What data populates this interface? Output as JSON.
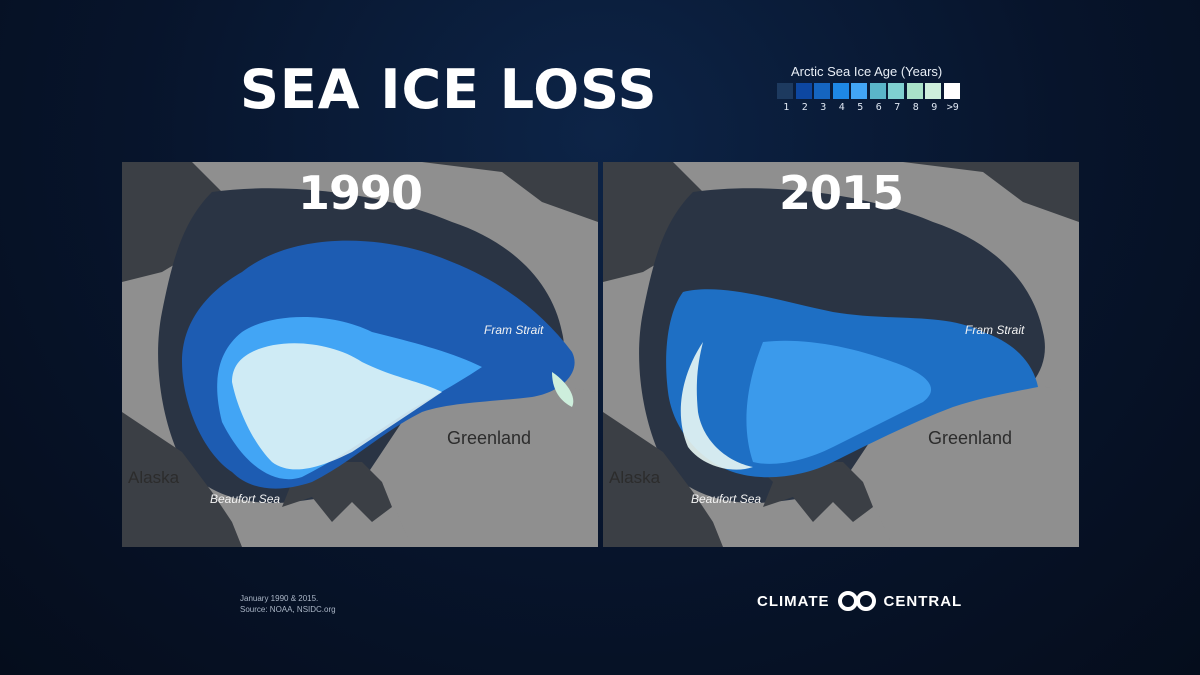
{
  "title": "SEA ICE LOSS",
  "legend": {
    "title": "Arctic Sea Ice Age (Years)",
    "labels": [
      "1",
      "2",
      "3",
      "4",
      "5",
      "6",
      "7",
      "8",
      "9",
      ">9"
    ],
    "colors": [
      "#1d3a5f",
      "#0d47a1",
      "#1565c0",
      "#1e88e5",
      "#42a5f5",
      "#5ab5c9",
      "#7fd0d0",
      "#a9e2c9",
      "#cdeedc",
      "#ffffff"
    ]
  },
  "maps": [
    {
      "year": "1990",
      "labels": {
        "fram": "Fram Strait",
        "greenland": "Greenland",
        "alaska": "Alaska",
        "beaufort": "Beaufort Sea"
      }
    },
    {
      "year": "2015",
      "labels": {
        "fram": "Fram Strait",
        "greenland": "Greenland",
        "alaska": "Alaska",
        "beaufort": "Beaufort Sea"
      }
    }
  ],
  "footer": {
    "line1": "January 1990 & 2015.",
    "line2": "Source: NOAA, NSIDC.org"
  },
  "brand": {
    "left": "CLIMATE",
    "right": "CENTRAL"
  }
}
